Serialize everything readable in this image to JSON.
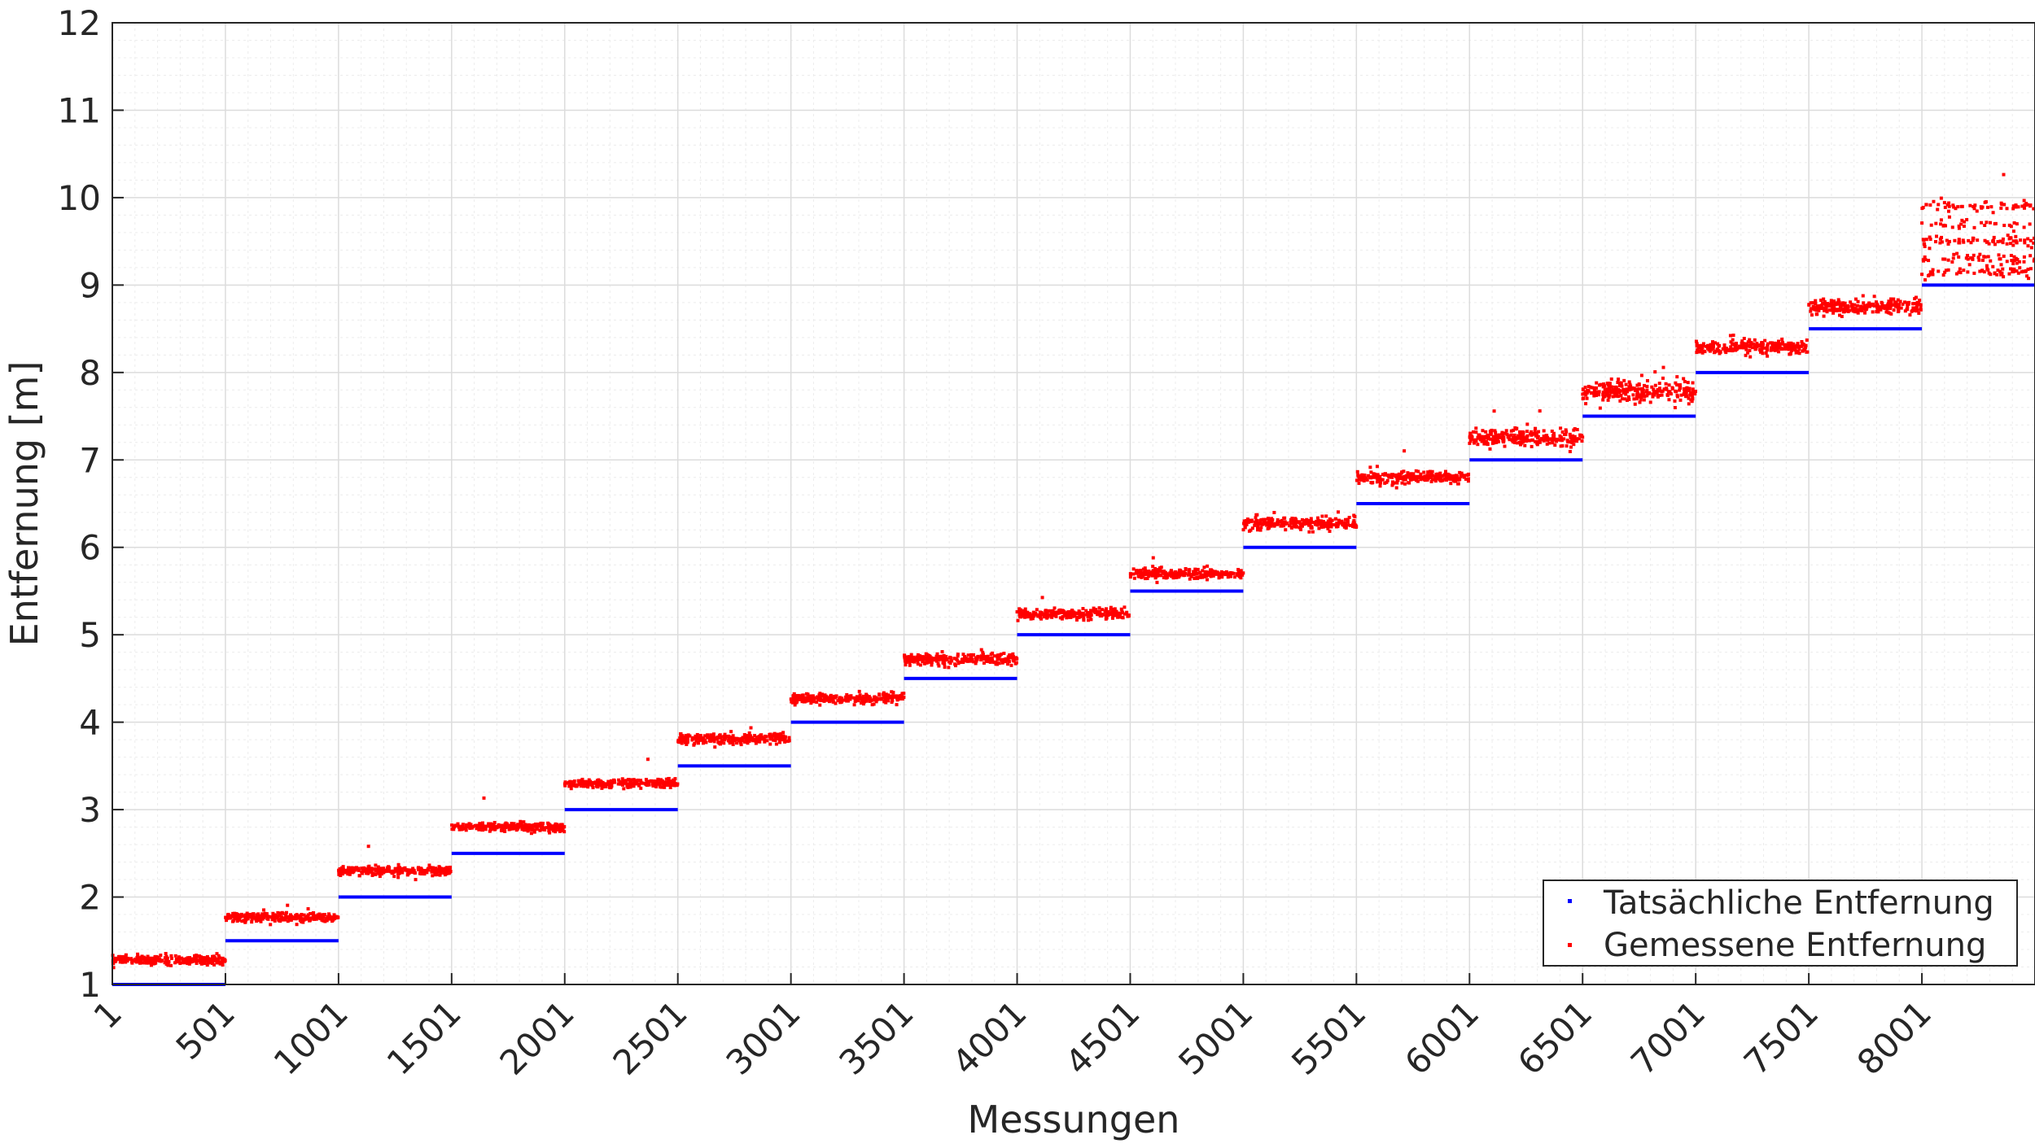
{
  "chart_data": {
    "type": "scatter",
    "xlabel": "Messungen",
    "ylabel": "Entfernung [m]",
    "xlim": [
      1,
      8501
    ],
    "ylim": [
      1,
      12
    ],
    "grid": "major and minor",
    "legend_position": "bottom-right",
    "x_ticks": [
      "1",
      "501",
      "1001",
      "1501",
      "2001",
      "2501",
      "3001",
      "3501",
      "4001",
      "4501",
      "5001",
      "5501",
      "6001",
      "6501",
      "7001",
      "7501",
      "8001"
    ],
    "y_ticks": [
      "1",
      "2",
      "3",
      "4",
      "5",
      "6",
      "7",
      "8",
      "9",
      "10",
      "11",
      "12"
    ],
    "samples_per_step": 500,
    "series": [
      {
        "name": "Tatsächliche Entfernung",
        "color": "#0000ff",
        "marker": "point",
        "values": [
          1,
          1.5,
          2,
          2.5,
          3,
          3.5,
          4,
          4.5,
          5,
          5.5,
          6,
          6.5,
          7,
          7.5,
          8,
          8.5,
          9
        ]
      },
      {
        "name": "Gemessene Entfernung",
        "color": "#ff0000",
        "marker": "point",
        "values": [
          1.28,
          1.77,
          2.3,
          2.8,
          3.3,
          3.81,
          4.27,
          4.72,
          5.24,
          5.7,
          6.27,
          6.8,
          7.25,
          7.78,
          8.29,
          8.75,
          9.4
        ],
        "spread": [
          0.025,
          0.025,
          0.025,
          0.025,
          0.025,
          0.03,
          0.03,
          0.03,
          0.03,
          0.03,
          0.035,
          0.035,
          0.05,
          0.06,
          0.04,
          0.04,
          0.2
        ]
      }
    ]
  }
}
